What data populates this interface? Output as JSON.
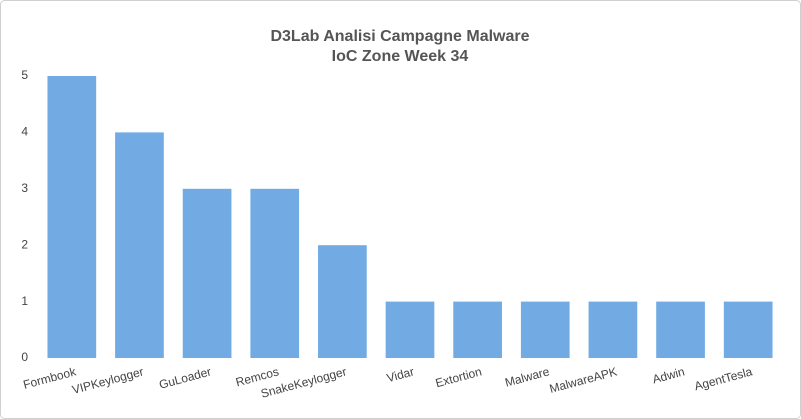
{
  "chart_data": {
    "type": "bar",
    "title": "D3Lab Analisi Campagne Malware",
    "subtitle": "IoC Zone Week 34",
    "categories": [
      "Formbook",
      "VIPKeylogger",
      "GuLoader",
      "Remcos",
      "SnakeKeylogger",
      "Vidar",
      "Extortion",
      "Malware",
      "MalwareAPK",
      "Adwin",
      "AgentTesla"
    ],
    "values": [
      5,
      4,
      3,
      3,
      2,
      1,
      1,
      1,
      1,
      1,
      1
    ],
    "color": "#72abe4",
    "ylim": [
      0,
      5
    ],
    "yticks": [
      0,
      1,
      2,
      3,
      4,
      5
    ],
    "grid": false
  }
}
